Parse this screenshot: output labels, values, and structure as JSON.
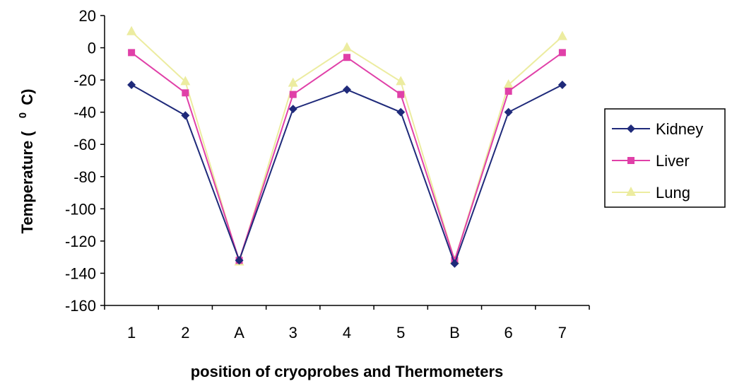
{
  "chart_data": {
    "type": "line",
    "categories": [
      "1",
      "2",
      "A",
      "3",
      "4",
      "5",
      "B",
      "6",
      "7"
    ],
    "series": [
      {
        "name": "Kidney",
        "color": "#1f2a7a",
        "marker": "diamond",
        "values": [
          -23,
          -42,
          -132,
          -38,
          -26,
          -40,
          -134,
          -40,
          -23
        ]
      },
      {
        "name": "Liver",
        "color": "#e040a8",
        "marker": "square",
        "values": [
          -3,
          -28,
          -132,
          -29,
          -6,
          -29,
          -132,
          -27,
          -3
        ]
      },
      {
        "name": "Lung",
        "color": "#ececa0",
        "marker": "triangle",
        "values": [
          10,
          -21,
          -133,
          -22,
          0,
          -21,
          -132,
          -23,
          7
        ]
      }
    ],
    "xlabel": "position of cryoprobes and Thermometers",
    "ylabel_main": "Temperature (",
    "ylabel_sup": "0",
    "ylabel_end": "C)",
    "ylim": [
      -160,
      20
    ],
    "yticks": [
      "20",
      "0",
      "-20",
      "-40",
      "-60",
      "-80",
      "-100",
      "-120",
      "-140",
      "-160"
    ],
    "ytick_values": [
      20,
      0,
      -20,
      -40,
      -60,
      -80,
      -100,
      -120,
      -140,
      -160
    ],
    "grid": false,
    "legend_position": "right"
  }
}
